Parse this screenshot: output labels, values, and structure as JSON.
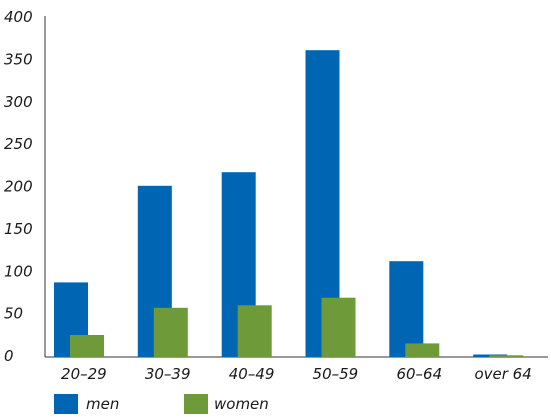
{
  "chart_data": {
    "type": "bar",
    "categories": [
      "20–29",
      "30–39",
      "40–49",
      "50–59",
      "60–64",
      "over 64"
    ],
    "series": [
      {
        "name": "men",
        "values": [
          88,
          202,
          218,
          362,
          113,
          3
        ],
        "color": "#0066b3"
      },
      {
        "name": "women",
        "values": [
          26,
          58,
          61,
          70,
          16,
          2
        ],
        "color": "#6e9a3a"
      }
    ],
    "y_ticks": [
      0,
      50,
      100,
      150,
      200,
      250,
      300,
      350,
      400
    ],
    "ylim": [
      0,
      400
    ],
    "grid": false,
    "legend_position": "bottom-left"
  }
}
